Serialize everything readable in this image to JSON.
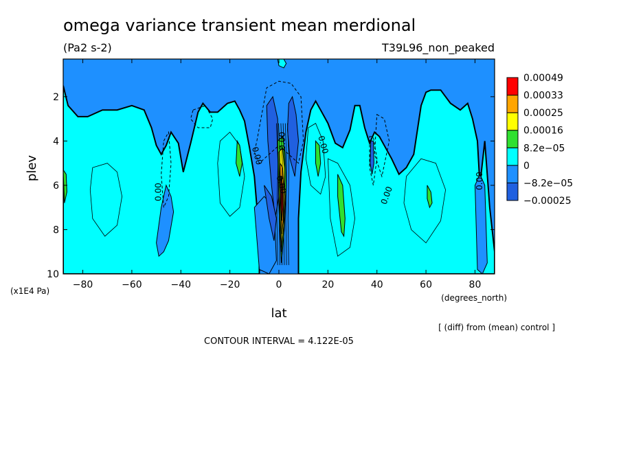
{
  "chart_data": {
    "type": "heatmap",
    "title": "omega variance transient mean merdional",
    "units": "(Pa2 s-2)",
    "experiment": "T39L96_non_peaked",
    "xlabel": "lat",
    "x_units": "(degrees_north)",
    "ylabel": "plev",
    "y_units": "(x1E4 Pa)",
    "x_ticks": [
      -80,
      -60,
      -40,
      -20,
      0,
      20,
      40,
      60,
      80
    ],
    "x_tick_labels": [
      "−80",
      "−60",
      "−40",
      "−20",
      "0",
      "20",
      "40",
      "60",
      "80"
    ],
    "xlim": [
      -88,
      88
    ],
    "y_ticks": [
      2,
      4,
      6,
      8,
      10
    ],
    "ylim": [
      10,
      0.3
    ],
    "y_reversed": true,
    "contour_interval_text": "CONTOUR INTERVAL = 4.122E-05",
    "diff_note": "[ (diff) from (mean) control ]",
    "contour_labels": [
      "0.00",
      "0.00",
      "0.00",
      "0.00",
      "0.00",
      "0.00",
      "0.00"
    ],
    "colorbar": {
      "colors": [
        "#2060e0",
        "#1e90ff",
        "#00ffff",
        "#30e030",
        "#ffff00",
        "#ffa500",
        "#ff0000"
      ],
      "labels": [
        "−0.00025",
        "−8.2e−05",
        "0",
        "8.2e−05",
        "0.00016",
        "0.00025",
        "0.00033",
        "0.00049"
      ]
    },
    "background_level": "#1e90ff",
    "regions": [
      {
        "level": "#00ffff",
        "lat": [
          -88,
          -86,
          -82,
          -78,
          -72,
          -66,
          -60,
          -55,
          -52,
          -50,
          -48,
          -46,
          -44,
          -41,
          -39,
          -36,
          -33,
          -31,
          -28,
          -25,
          -21,
          -18,
          -16,
          -14,
          -12,
          -10,
          -8,
          -8,
          -12,
          -18,
          -30,
          -50,
          -70,
          -88
        ],
        "plev": [
          1.5,
          2.4,
          2.9,
          2.9,
          2.6,
          2.6,
          2.4,
          2.6,
          3.4,
          4.2,
          4.6,
          4.2,
          3.6,
          4.1,
          5.4,
          4.1,
          2.7,
          2.3,
          2.7,
          2.7,
          2.3,
          2.2,
          2.6,
          3.1,
          4.3,
          5.6,
          8.3,
          10,
          10,
          10,
          10,
          10,
          10,
          10
        ]
      },
      {
        "level": "#00ffff",
        "lat": [
          8,
          9,
          11,
          13,
          15,
          17,
          20,
          23,
          26,
          29,
          31,
          33,
          35,
          37,
          39,
          41,
          43,
          46,
          49,
          52,
          55,
          58,
          60,
          62,
          66,
          70,
          74,
          77,
          79,
          81,
          82,
          84,
          86,
          88,
          88,
          60,
          30,
          8
        ],
        "plev": [
          7.5,
          5.4,
          3.6,
          2.6,
          2.2,
          2.6,
          3.2,
          4.1,
          4.3,
          3.5,
          2.4,
          2.4,
          3.4,
          4.1,
          3.6,
          3.8,
          4.2,
          4.8,
          5.5,
          5.2,
          4.6,
          2.4,
          1.8,
          1.7,
          1.7,
          2.3,
          2.6,
          2.3,
          3.0,
          4.0,
          6.0,
          4.0,
          7.0,
          9.0,
          10,
          10,
          10,
          10
        ]
      },
      {
        "level": "#1e90ff",
        "lat": [
          -50,
          -48,
          -46,
          -44,
          -43,
          -45,
          -47,
          -49
        ],
        "plev": [
          8.6,
          7.0,
          6.0,
          6.5,
          7.2,
          8.5,
          9.0,
          9.2
        ]
      },
      {
        "level": "#1e90ff",
        "lat": [
          -10,
          -6,
          -2,
          -1,
          -4,
          -8
        ],
        "plev": [
          7.0,
          6.5,
          7.0,
          9.4,
          10,
          9.8
        ]
      },
      {
        "level": "#1e90ff",
        "lat": [
          80,
          82,
          84,
          85,
          83,
          81
        ],
        "plev": [
          6.0,
          5.5,
          6.0,
          9.5,
          10,
          9.8
        ]
      },
      {
        "level": "#2060e0",
        "lat": [
          -5,
          -2.5,
          -0.5,
          0,
          -1.5,
          -3,
          -4.5
        ],
        "plev": [
          2.4,
          2.0,
          3.0,
          6.5,
          7.5,
          6.0,
          4.0
        ]
      },
      {
        "level": "#2060e0",
        "lat": [
          4,
          5.5,
          7,
          8,
          6.5,
          4.5,
          3.5
        ],
        "plev": [
          2.3,
          2.0,
          2.8,
          4.0,
          5.6,
          4.8,
          3.5
        ]
      },
      {
        "level": "#2060e0",
        "lat": [
          -6,
          -3,
          -1,
          -2,
          -4
        ],
        "plev": [
          6.0,
          6.5,
          7.5,
          8.5,
          7.5
        ]
      },
      {
        "level": "#2060e0",
        "lat": [
          37.5,
          38.5,
          38.8,
          38,
          37.2
        ],
        "plev": [
          4.0,
          4.0,
          5.0,
          5.5,
          5.0
        ]
      },
      {
        "level": "#30e030",
        "lat": [
          -88,
          -86.8,
          -86.5,
          -87.5
        ],
        "plev": [
          5.3,
          5.5,
          6.3,
          6.8
        ]
      },
      {
        "level": "#30e030",
        "lat": [
          -17,
          -16,
          -15,
          -16,
          -17.5
        ],
        "plev": [
          4.0,
          4.2,
          5.0,
          5.6,
          5.0
        ]
      },
      {
        "level": "#30e030",
        "lat": [
          15,
          16.5,
          17,
          16,
          15
        ],
        "plev": [
          4.0,
          4.2,
          5.0,
          5.6,
          5.0
        ]
      },
      {
        "level": "#30e030",
        "lat": [
          24,
          26,
          27,
          26.5,
          25.5,
          24
        ],
        "plev": [
          5.5,
          6.0,
          7.5,
          8.3,
          8.1,
          6.5
        ]
      },
      {
        "level": "#30e030",
        "lat": [
          60.5,
          62,
          62.5,
          61.5,
          60.5
        ],
        "plev": [
          6.0,
          6.3,
          6.8,
          7.0,
          6.6
        ]
      },
      {
        "level": "#30e030",
        "lat": [
          -0.5,
          1.5,
          2.5,
          3,
          2.2,
          1,
          0
        ],
        "plev": [
          4.0,
          3.8,
          4.5,
          6.0,
          8.0,
          9.5,
          7.0
        ]
      },
      {
        "level": "#ffff00",
        "lat": [
          0,
          1.5,
          2.2,
          2.5,
          2,
          1,
          0.3
        ],
        "plev": [
          4.5,
          4.3,
          5.2,
          6.5,
          7.8,
          9.0,
          6.5
        ]
      },
      {
        "level": "#ffa500",
        "lat": [
          0.5,
          1.5,
          2,
          1.8,
          1.2,
          0.7
        ],
        "plev": [
          5.0,
          5.2,
          6.2,
          7.5,
          8.2,
          6.8
        ]
      },
      {
        "level": "#ff0000",
        "lat": [
          0.9,
          1.5,
          1.6,
          1.2,
          0.9
        ],
        "plev": [
          5.6,
          6.0,
          7.0,
          7.6,
          6.8
        ]
      },
      {
        "level": "#00ffff",
        "lat": [
          -0.5,
          0.5,
          2,
          3,
          2,
          0
        ],
        "plev": [
          0.3,
          0.2,
          0.3,
          0.5,
          0.7,
          0.6
        ]
      }
    ]
  }
}
